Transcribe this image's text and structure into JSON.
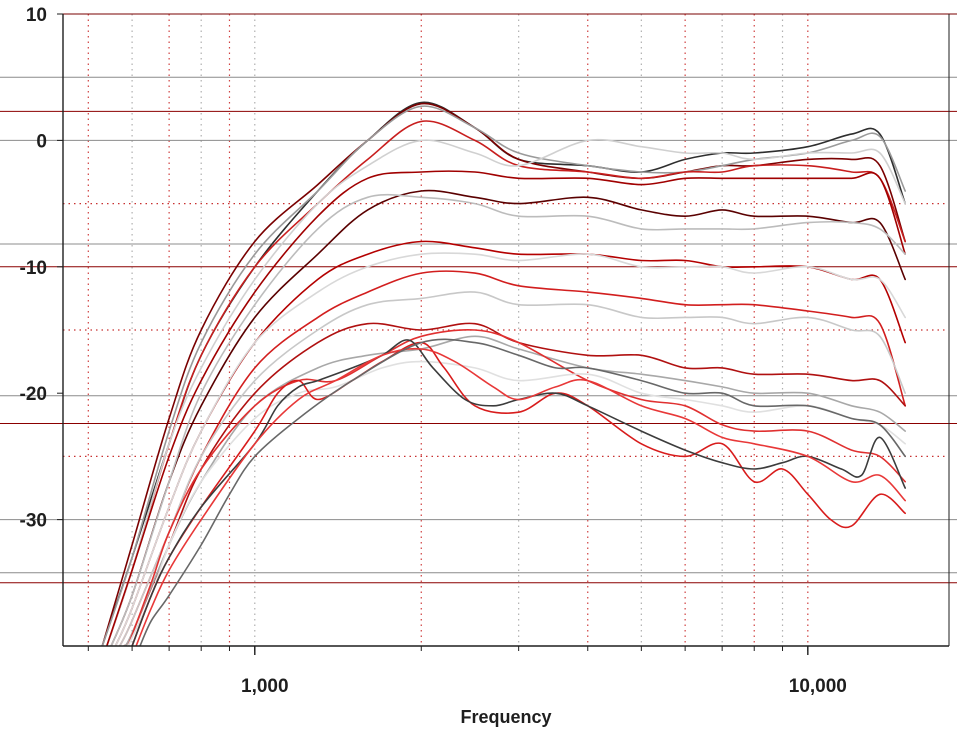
{
  "chart_data": {
    "type": "line",
    "xlabel": "Frequency",
    "ylabel": "",
    "x_scale": "log",
    "xlim": [
      450,
      18000
    ],
    "ylim": [
      -40,
      10
    ],
    "x_tick_labels": [
      {
        "value": 1000,
        "label": "1,000"
      },
      {
        "value": 10000,
        "label": "10,000"
      }
    ],
    "y_tick_labels": [
      {
        "value": 10,
        "label": "10"
      },
      {
        "value": 0,
        "label": "0"
      },
      {
        "value": -10,
        "label": "-10"
      },
      {
        "value": -20,
        "label": "-20"
      },
      {
        "value": -30,
        "label": "-30"
      }
    ],
    "x_grid": [
      500,
      600,
      700,
      800,
      900,
      1000,
      2000,
      3000,
      4000,
      5000,
      6000,
      7000,
      8000,
      9000,
      10000
    ],
    "reference_lines": [
      {
        "y": 10,
        "color": "#7a0000"
      },
      {
        "y": 5,
        "color": "#8c8c8c"
      },
      {
        "y": 2.3,
        "color": "#8b0000"
      },
      {
        "y": 0,
        "color": "#8c8c8c"
      },
      {
        "y": -8.2,
        "color": "#8c8c8c"
      },
      {
        "y": -10,
        "color": "#8b0000"
      },
      {
        "y": -20.2,
        "color": "#8c8c8c"
      },
      {
        "y": -22.4,
        "color": "#8b0000"
      },
      {
        "y": -30,
        "color": "#8c8c8c"
      },
      {
        "y": -34.2,
        "color": "#8c8c8c"
      },
      {
        "y": -35,
        "color": "#8b0000"
      }
    ],
    "dotted_lines": [
      -5,
      -15,
      -25
    ],
    "grid": true,
    "legend": "none",
    "series": [
      {
        "color": "#2e2e2e",
        "x": [
          530,
          600,
          700,
          800,
          1000,
          1300,
          1600,
          2000,
          2500,
          3000,
          4000,
          5000,
          6000,
          7000,
          8000,
          10000,
          12000,
          13500,
          15000
        ],
        "y": [
          -40,
          -33,
          -24,
          -17,
          -10,
          -4,
          0,
          3,
          1,
          -1.5,
          -2,
          -2.5,
          -1.5,
          -1,
          -1,
          -0.5,
          0.5,
          0.5,
          -5
        ]
      },
      {
        "color": "#7a0000",
        "x": [
          530,
          600,
          700,
          800,
          1000,
          1300,
          1600,
          2000,
          2500,
          3000,
          4000,
          5000,
          6000,
          7000,
          8000,
          10000,
          12000,
          13500,
          15000
        ],
        "y": [
          -40,
          -32,
          -22,
          -15,
          -8,
          -3.5,
          0,
          2.9,
          1,
          -1.5,
          -2.5,
          -3,
          -2.5,
          -2,
          -2,
          -1.5,
          -1.5,
          -2,
          -8
        ]
      },
      {
        "color": "#9a9a9a",
        "x": [
          530,
          600,
          700,
          800,
          1000,
          1300,
          1600,
          2000,
          2500,
          3000,
          4000,
          5000,
          6000,
          7000,
          8000,
          10000,
          12000,
          13500,
          15000
        ],
        "y": [
          -40,
          -33,
          -23,
          -16,
          -9,
          -4,
          0,
          2.7,
          1,
          -1,
          -2,
          -2.5,
          -2.5,
          -2,
          -1.5,
          -1,
          0,
          0.3,
          -4
        ]
      },
      {
        "color": "#c81e1e",
        "x": [
          540,
          600,
          700,
          800,
          1000,
          1300,
          1600,
          2000,
          2500,
          3000,
          4000,
          5000,
          6000,
          7000,
          8000,
          10000,
          12000,
          13500,
          15000
        ],
        "y": [
          -40,
          -34,
          -24,
          -17,
          -10,
          -5,
          -1.5,
          1.5,
          0,
          -2,
          -2.5,
          -3,
          -2.5,
          -2.5,
          -2,
          -2,
          -2.5,
          -3,
          -8
        ]
      },
      {
        "color": "#d0d0d0",
        "x": [
          540,
          600,
          700,
          800,
          1000,
          1300,
          1600,
          2000,
          2500,
          3000,
          4000,
          5000,
          6000,
          7000,
          8000,
          10000,
          12000,
          13500,
          15000
        ],
        "y": [
          -40,
          -34,
          -24,
          -18,
          -11,
          -5,
          -2,
          0,
          -1,
          -2,
          0,
          -0.5,
          -1,
          -1,
          -1.5,
          -1,
          -1,
          -1,
          -5
        ]
      },
      {
        "color": "#a00000",
        "x": [
          540,
          600,
          700,
          800,
          1000,
          1300,
          1600,
          2000,
          2500,
          3000,
          4000,
          5000,
          6000,
          7000,
          8000,
          10000,
          12000,
          13500,
          15000
        ],
        "y": [
          -40,
          -34,
          -25,
          -19,
          -12,
          -6,
          -3,
          -2.5,
          -2.5,
          -3,
          -3,
          -3.5,
          -3,
          -3,
          -3,
          -3,
          -3,
          -3,
          -9
        ]
      },
      {
        "color": "#5a0000",
        "x": [
          550,
          600,
          700,
          800,
          1000,
          1300,
          1600,
          2000,
          2500,
          3000,
          4000,
          5000,
          6000,
          7000,
          8000,
          10000,
          12000,
          13500,
          15000
        ],
        "y": [
          -40,
          -36,
          -27,
          -21,
          -14,
          -9,
          -5.5,
          -4,
          -4.5,
          -5,
          -4.5,
          -5.5,
          -6,
          -5.5,
          -6,
          -6,
          -6.5,
          -6.5,
          -11
        ]
      },
      {
        "color": "#bcbcbc",
        "x": [
          550,
          600,
          700,
          800,
          1000,
          1300,
          1600,
          2000,
          2500,
          3000,
          4000,
          5000,
          6000,
          7000,
          8000,
          10000,
          12000,
          13500,
          15000
        ],
        "y": [
          -40,
          -36,
          -27,
          -20,
          -13,
          -7,
          -4.5,
          -4.5,
          -5,
          -6,
          -6,
          -7,
          -7,
          -7,
          -7,
          -6.5,
          -6.5,
          -7,
          -9
        ]
      },
      {
        "color": "#b40000",
        "x": [
          560,
          600,
          700,
          800,
          1000,
          1300,
          1600,
          2000,
          2500,
          3000,
          4000,
          5000,
          6000,
          7000,
          8000,
          10000,
          12000,
          13500,
          15000
        ],
        "y": [
          -40,
          -37,
          -29,
          -23,
          -16,
          -11,
          -9,
          -8,
          -8.5,
          -9,
          -9,
          -9.5,
          -9.5,
          -10,
          -10,
          -10,
          -11,
          -11,
          -16
        ]
      },
      {
        "color": "#d8d8d8",
        "x": [
          560,
          600,
          700,
          800,
          1000,
          1300,
          1600,
          2000,
          2500,
          3000,
          4000,
          5000,
          6000,
          7000,
          8000,
          10000,
          12000,
          13500,
          15000
        ],
        "y": [
          -40,
          -37,
          -29,
          -23,
          -16,
          -12,
          -10,
          -9,
          -9,
          -9.5,
          -9,
          -10,
          -10,
          -10,
          -10.5,
          -10,
          -11,
          -11,
          -14
        ]
      },
      {
        "color": "#d21e1e",
        "x": [
          570,
          600,
          700,
          800,
          1000,
          1300,
          1600,
          2000,
          2500,
          3000,
          4000,
          5000,
          6000,
          7000,
          8000,
          10000,
          12000,
          13500,
          15000
        ],
        "y": [
          -40,
          -38,
          -31,
          -25,
          -18,
          -14,
          -12,
          -10.5,
          -10.5,
          -11.5,
          -12,
          -12.5,
          -13,
          -13,
          -13,
          -13.5,
          -14,
          -14.5,
          -21
        ]
      },
      {
        "color": "#c8c8c8",
        "x": [
          570,
          600,
          700,
          800,
          1000,
          1300,
          1600,
          2000,
          2500,
          3000,
          4000,
          5000,
          6000,
          7000,
          8000,
          10000,
          12000,
          13500,
          15000
        ],
        "y": [
          -40,
          -38,
          -31,
          -25,
          -19,
          -15,
          -13,
          -12.5,
          -12,
          -13,
          -13,
          -14,
          -14,
          -14,
          -14.5,
          -14,
          -15,
          -15.5,
          -20
        ]
      },
      {
        "color": "#b01010",
        "x": [
          580,
          600,
          700,
          800,
          1000,
          1300,
          1600,
          2000,
          2500,
          3000,
          4000,
          5000,
          6000,
          7000,
          8000,
          10000,
          12000,
          13500,
          15000
        ],
        "y": [
          -40,
          -39,
          -32,
          -26,
          -20,
          -16,
          -14.5,
          -15,
          -14.5,
          -16,
          -17,
          -17,
          -18,
          -18,
          -18.5,
          -18.5,
          -19,
          -19,
          -21
        ]
      },
      {
        "color": "#a8a8a8",
        "x": [
          580,
          600,
          700,
          800,
          1000,
          1300,
          1600,
          2000,
          2500,
          3000,
          4000,
          5000,
          6000,
          7000,
          8000,
          10000,
          12000,
          13500,
          15000
        ],
        "y": [
          -40,
          -39,
          -32,
          -27,
          -21,
          -18,
          -17,
          -16.5,
          -15.5,
          -16.5,
          -18,
          -18.5,
          -19,
          -19.5,
          -20,
          -20,
          -21,
          -21.5,
          -23
        ]
      },
      {
        "color": "#e03030",
        "x": [
          590,
          650,
          700,
          800,
          1000,
          1200,
          1400,
          1700,
          2000,
          2500,
          3000,
          4000,
          5000,
          6000,
          7000,
          8000,
          10000,
          12000,
          13500,
          15000
        ],
        "y": [
          -40,
          -35,
          -31,
          -26,
          -21,
          -19,
          -19,
          -17,
          -15.5,
          -15,
          -16,
          -19,
          -20.5,
          -21,
          -22.5,
          -23,
          -23,
          -24.5,
          -25,
          -27
        ]
      },
      {
        "color": "#e0e0e0",
        "x": [
          590,
          650,
          700,
          800,
          1000,
          1200,
          1400,
          1700,
          2000,
          2500,
          3000,
          4000,
          5000,
          6000,
          7000,
          8000,
          10000,
          12000,
          13500,
          15000
        ],
        "y": [
          -40,
          -36,
          -32,
          -27,
          -22,
          -20,
          -19.5,
          -18,
          -17.5,
          -18,
          -19,
          -18.5,
          -20,
          -20.5,
          -21,
          -21.5,
          -21,
          -22,
          -22.5,
          -24
        ]
      },
      {
        "color": "#d81c1c",
        "x": [
          600,
          650,
          700,
          800,
          1000,
          1100,
          1200,
          1300,
          1500,
          1700,
          2000,
          2200,
          2500,
          3000,
          3500,
          4000,
          5000,
          6000,
          7000,
          8000,
          9000,
          10000,
          11000,
          12000,
          13500,
          15000
        ],
        "y": [
          -40,
          -36,
          -33,
          -29,
          -23,
          -20,
          -19,
          -20.5,
          -19,
          -17.5,
          -16,
          -18,
          -21,
          -21.5,
          -20,
          -21,
          -24,
          -25,
          -24,
          -27,
          -26,
          -28,
          -30,
          -30.5,
          -28,
          -29.5
        ]
      },
      {
        "color": "#3c3c3c",
        "x": [
          600,
          650,
          700,
          800,
          1000,
          1100,
          1200,
          1300,
          1500,
          1700,
          1900,
          2100,
          2400,
          2700,
          3000,
          3500,
          4000,
          5000,
          6000,
          7000,
          8000,
          9000,
          10000,
          11500,
          12500,
          13500,
          15000
        ],
        "y": [
          -40,
          -36,
          -33,
          -29,
          -24,
          -21,
          -19.5,
          -19,
          -18,
          -17,
          -15.8,
          -18,
          -20.5,
          -21,
          -20.5,
          -20,
          -21,
          -23,
          -24.5,
          -25.5,
          -26,
          -25.5,
          -25,
          -26,
          -26.5,
          -23.5,
          -27.5
        ]
      },
      {
        "color": "#e83838",
        "x": [
          610,
          650,
          700,
          800,
          1000,
          1200,
          1400,
          1700,
          2000,
          2300,
          2700,
          3000,
          3500,
          4000,
          5000,
          6000,
          7000,
          8000,
          10000,
          12000,
          13500,
          15000
        ],
        "y": [
          -40,
          -37,
          -34,
          -30,
          -24,
          -20.5,
          -19,
          -17,
          -16.5,
          -17.5,
          -19.5,
          -20.5,
          -19.5,
          -19,
          -21,
          -22,
          -23.5,
          -24,
          -25,
          -27,
          -26.5,
          -28.5
        ]
      },
      {
        "color": "#686868",
        "x": [
          620,
          650,
          700,
          800,
          900,
          1000,
          1200,
          1500,
          2000,
          2500,
          3000,
          3500,
          4000,
          5000,
          6000,
          7000,
          8000,
          10000,
          12000,
          13500,
          15000
        ],
        "y": [
          -40,
          -38,
          -36,
          -32,
          -28,
          -25,
          -22,
          -19,
          -16,
          -16,
          -17,
          -18,
          -18,
          -19,
          -20,
          -20,
          -21,
          -21,
          -22,
          -22.5,
          -25
        ]
      }
    ]
  }
}
